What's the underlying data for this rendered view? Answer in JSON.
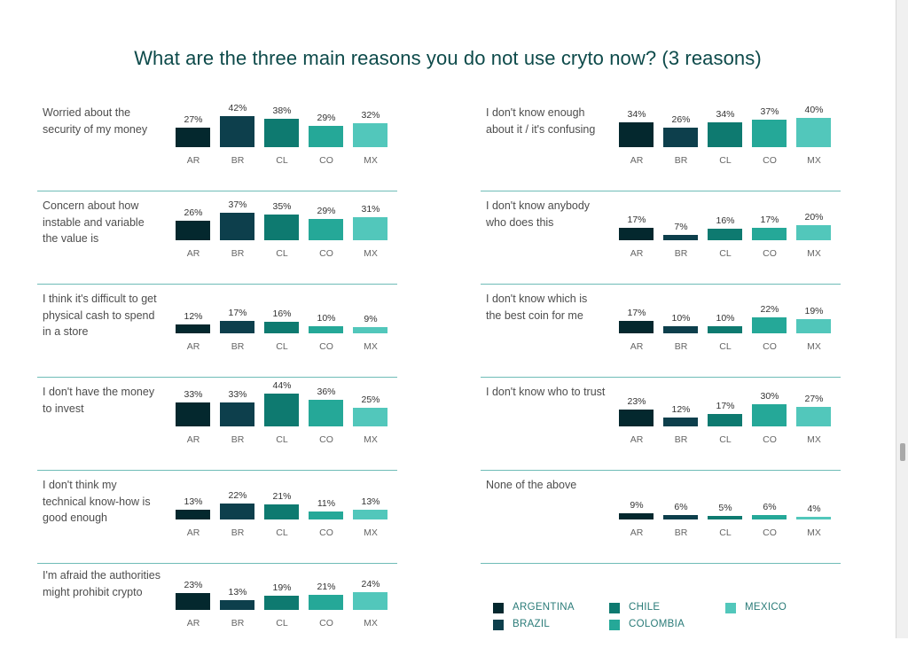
{
  "title": "What are the three main reasons you do not use cryto now? (3 reasons)",
  "colors": {
    "AR": "#04282e",
    "BR": "#0d3f4c",
    "CL": "#0e7a70",
    "CO": "#25a898",
    "MX": "#52c7bb",
    "title": "#0d4a4a",
    "separator": "#6fbcb7"
  },
  "chart_data": {
    "type": "bar",
    "categories": [
      "AR",
      "BR",
      "CL",
      "CO",
      "MX"
    ],
    "y_unit": "%",
    "legend": [
      {
        "key": "AR",
        "name": "ARGENTINA"
      },
      {
        "key": "BR",
        "name": "BRAZIL"
      },
      {
        "key": "CL",
        "name": "CHILE"
      },
      {
        "key": "CO",
        "name": "COLOMBIA"
      },
      {
        "key": "MX",
        "name": "MEXICO"
      }
    ],
    "legend_position": "bottom-right",
    "panels": [
      {
        "label": "Worried about the security of my money",
        "values": [
          27,
          42,
          38,
          29,
          32
        ]
      },
      {
        "label": "Concern about how instable and variable the value is",
        "values": [
          26,
          37,
          35,
          29,
          31
        ]
      },
      {
        "label": "I think it's difficult to get physical cash to spend in a store",
        "values": [
          12,
          17,
          16,
          10,
          9
        ]
      },
      {
        "label": "I don't have the money to invest",
        "values": [
          33,
          33,
          44,
          36,
          25
        ]
      },
      {
        "label": "I don't think my technical know-how is good enough",
        "values": [
          13,
          22,
          21,
          11,
          13
        ]
      },
      {
        "label": "I'm afraid the authorities might prohibit crypto",
        "values": [
          23,
          13,
          19,
          21,
          24
        ]
      },
      {
        "label": "I don't know enough about it / it's confusing",
        "values": [
          34,
          26,
          34,
          37,
          40
        ]
      },
      {
        "label": "I don't know anybody who does this",
        "values": [
          17,
          7,
          16,
          17,
          20
        ]
      },
      {
        "label": "I don't know which is the best coin for me",
        "values": [
          17,
          10,
          10,
          22,
          19
        ]
      },
      {
        "label": "I don't know who to trust",
        "values": [
          23,
          12,
          17,
          30,
          27
        ]
      },
      {
        "label": "None of the above",
        "values": [
          9,
          6,
          5,
          6,
          4
        ]
      }
    ]
  }
}
